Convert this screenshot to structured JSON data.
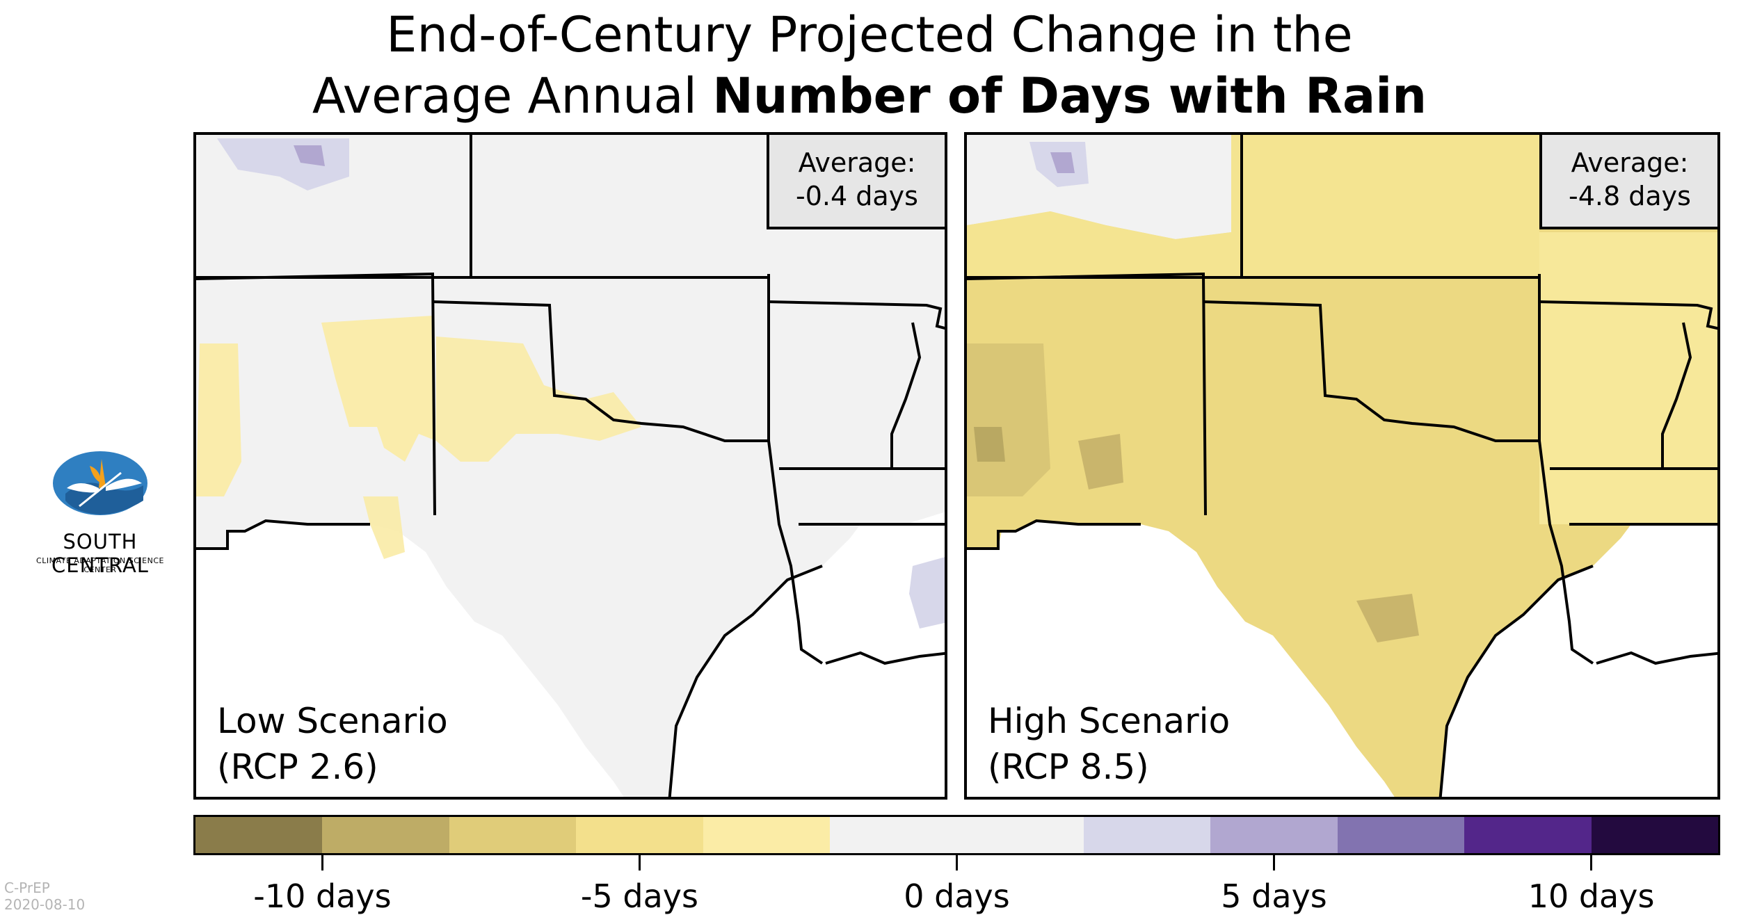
{
  "title": {
    "line1": "End-of-Century Projected Change in the",
    "line2_prefix": "Average Annual ",
    "line2_bold": "Number of Days with Rain"
  },
  "panels": [
    {
      "scenario_line1": "Low Scenario",
      "scenario_line2": "(RCP 2.6)",
      "avg_label": "Average:",
      "avg_value": "-0.4 days",
      "avg_change_days": -0.4,
      "region_fill": "#f2f2f2"
    },
    {
      "scenario_line1": "High Scenario",
      "scenario_line2": "(RCP 8.5)",
      "avg_label": "Average:",
      "avg_value": "-4.8 days",
      "avg_change_days": -4.8,
      "region_fill": "#ecd982"
    }
  ],
  "colorbar": {
    "colors": [
      "#8a7c4a",
      "#beac66",
      "#e0cc79",
      "#f3e08c",
      "#fbeca6",
      "#f2f2f2",
      "#f2f2f2",
      "#d7d7ea",
      "#b1a7d0",
      "#8273b0",
      "#53268a",
      "#230a3f"
    ],
    "tick_labels": [
      "-10 days",
      "-5 days",
      "0 days",
      "5 days",
      "10 days"
    ],
    "tick_values": [
      -10,
      -5,
      0,
      5,
      10
    ],
    "range": [
      -12,
      12
    ]
  },
  "logo": {
    "line1": "SOUTH CENTRAL",
    "line2": "CLIMATE ADAPTATION SCIENCE CENTER"
  },
  "credit": {
    "line1": "C-PrEP",
    "line2": "2020-08-10"
  }
}
